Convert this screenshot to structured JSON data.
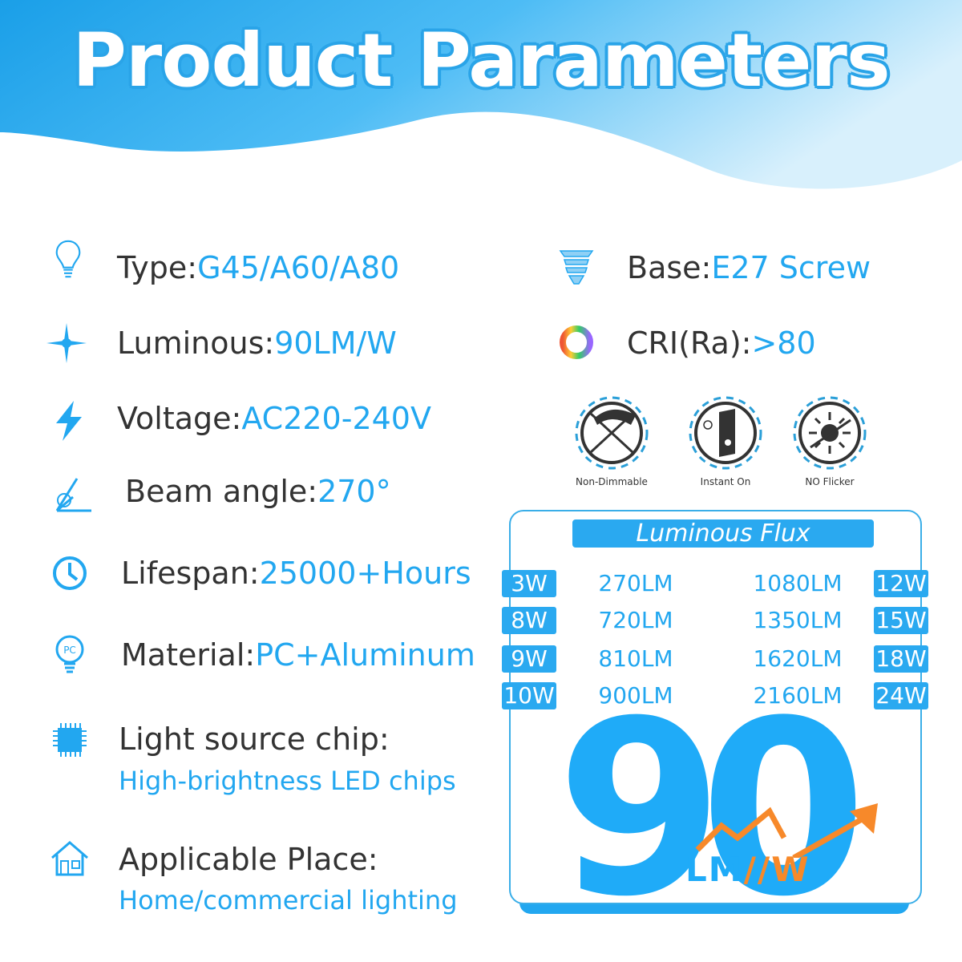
{
  "title": "Product Parameters",
  "specs_left": [
    {
      "icon": "bulb-icon",
      "label": "Type:",
      "value": "G45/A60/A80"
    },
    {
      "icon": "sparkle-icon",
      "label": "Luminous:",
      "value": "90LM/W"
    },
    {
      "icon": "lightning-icon",
      "label": "Voltage:",
      "value": "AC220-240V"
    },
    {
      "icon": "beam-angle-icon",
      "label": "Beam angle:",
      "value": "270°"
    },
    {
      "icon": "clock-icon",
      "label": "Lifespan:",
      "value": "25000+Hours"
    },
    {
      "icon": "pc-bulb-icon",
      "label": "Material:",
      "value": "PC+Aluminum"
    },
    {
      "icon": "chip-icon",
      "label": "Light source chip:",
      "value": "High-brightness LED chips"
    },
    {
      "icon": "house-icon",
      "label": "Applicable Place:",
      "value": "Home/commercial lighting"
    }
  ],
  "specs_right": [
    {
      "icon": "screw-base-icon",
      "label": "Base:",
      "value": "E27 Screw"
    },
    {
      "icon": "color-ring-icon",
      "label": "CRI(Ra):",
      "value": ">80"
    }
  ],
  "features": [
    {
      "icon": "non-dimmable-icon",
      "label": "Non-Dimmable"
    },
    {
      "icon": "instant-on-icon",
      "label": "Instant On"
    },
    {
      "icon": "no-flicker-icon",
      "label": "NO Flicker"
    }
  ],
  "flux": {
    "title": "Luminous Flux",
    "rows": [
      {
        "w1": "3W",
        "lm1": "270LM",
        "lm2": "1080LM",
        "w2": "12W"
      },
      {
        "w1": "8W",
        "lm1": "720LM",
        "lm2": "1350LM",
        "w2": "15W"
      },
      {
        "w1": "9W",
        "lm1": "810LM",
        "lm2": "1620LM",
        "w2": "18W"
      },
      {
        "w1": "10W",
        "lm1": "900LM",
        "lm2": "2160LM",
        "w2": "24W"
      }
    ]
  },
  "badge": {
    "number": "90",
    "unit_lm": "LM",
    "unit_slash": "//",
    "unit_w": "W"
  },
  "colors": {
    "accent": "#22a7f0",
    "orange": "#f7892a",
    "text": "#333333"
  }
}
